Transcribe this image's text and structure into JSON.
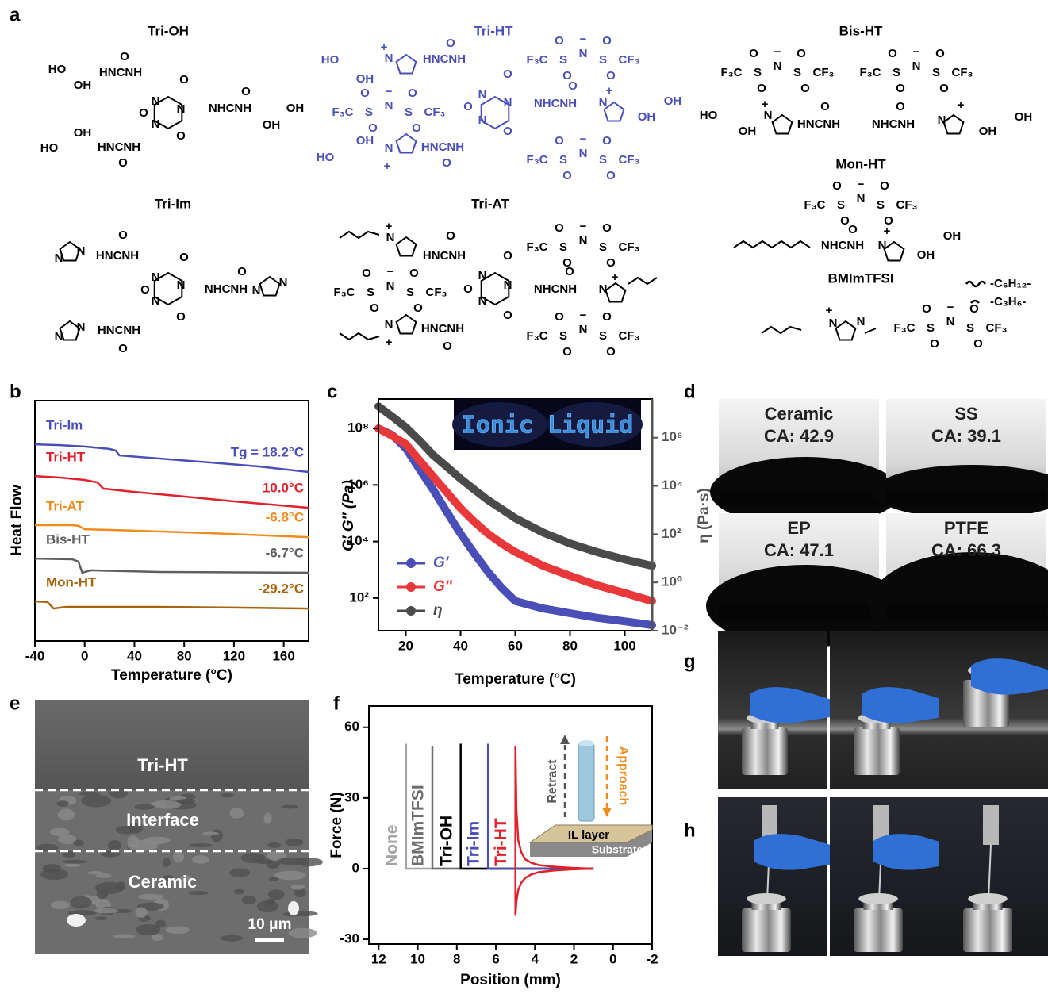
{
  "panel_labels": [
    "a",
    "b",
    "c",
    "d",
    "e",
    "f",
    "g",
    "h"
  ],
  "structures": {
    "molecules": [
      {
        "name": "Tri-OH",
        "fragments": [
          "HO",
          "OH",
          "O",
          "HNCNH",
          "N",
          "O",
          "N",
          "O",
          "N",
          "O",
          "NHCNH",
          "O",
          "OH",
          "OH",
          "HO",
          "OH",
          "HNCNH",
          "O"
        ]
      },
      {
        "name": "Tri-HT",
        "fragments": [
          "HO",
          "OH",
          "+",
          "N",
          "HNCNH",
          "O",
          "N",
          "O",
          "N",
          "O",
          "N",
          "O",
          "NHCNH",
          "O",
          "N",
          "+",
          "OH",
          "OH",
          "HO",
          "OH",
          "N",
          "+",
          "HNCNH",
          "O"
        ]
      },
      {
        "name": "Bis-HT",
        "fragments": [
          "HO",
          "OH",
          "+",
          "N",
          "HNCNH",
          "O",
          "NHCNH",
          "O",
          "N",
          "+",
          "OH",
          "OH"
        ]
      },
      {
        "name": "Mon-HT",
        "fragments": [
          "NHCNH",
          "O",
          "N",
          "+",
          "OH",
          "OH"
        ]
      },
      {
        "name": "Tri-Im",
        "fragments": [
          "N",
          "N",
          "HNCNH",
          "O",
          "N",
          "O",
          "N",
          "O",
          "N",
          "O",
          "NHCNH",
          "O",
          "N",
          "N",
          "N",
          "N",
          "HNCNH",
          "O"
        ]
      },
      {
        "name": "Tri-AT",
        "fragments": [
          "+",
          "N",
          "HNCNH",
          "O",
          "N",
          "O",
          "N",
          "O",
          "N",
          "O",
          "NHCNH",
          "O",
          "N",
          "+",
          "N",
          "+",
          "HNCNH",
          "O"
        ]
      },
      {
        "name": "BMImTFSI",
        "fragments": [
          "+",
          "N",
          "N"
        ]
      }
    ],
    "anion": [
      "O",
      "−",
      "O",
      "F₃C",
      "S",
      "N",
      "S",
      "CF₃",
      "O",
      "O"
    ],
    "linkers": [
      "-C₆H₁₂-",
      "-C₃H₆-"
    ]
  },
  "chart_data": [
    {
      "type": "line",
      "xlabel": "Temperature (°C)",
      "ylabel": "Heat Flow",
      "xlim": [
        -40,
        180
      ],
      "xticks": [
        -40,
        0,
        40,
        80,
        120,
        160
      ],
      "ylim": [
        0,
        100
      ],
      "series": [
        {
          "name": "Tri-Im",
          "color": "#4a4fb8",
          "annotation": "Tg = 18.2°C",
          "x": [
            -40,
            -20,
            0,
            20,
            25,
            28,
            60,
            100,
            140,
            180
          ],
          "values": [
            81.8,
            81.5,
            80.9,
            79.9,
            79.2,
            77.2,
            75.9,
            74.3,
            72.6,
            70.3
          ]
        },
        {
          "name": "Tri-HT",
          "color": "#e0202a",
          "annotation": "10.0°C",
          "x": [
            -40,
            -20,
            0,
            10,
            15,
            40,
            80,
            120,
            180
          ],
          "values": [
            68.6,
            68.0,
            67.0,
            66.0,
            63.4,
            62.0,
            60.1,
            58.1,
            55.4
          ]
        },
        {
          "name": "Tri-AT",
          "color": "#f08c1e",
          "annotation": "-6.8°C",
          "x": [
            -40,
            -10,
            -5,
            0,
            40,
            100,
            180
          ],
          "values": [
            48.2,
            48.2,
            47.9,
            46.5,
            45.9,
            44.9,
            43.2
          ]
        },
        {
          "name": "Bis-HT",
          "color": "#5f5f5f",
          "annotation": "-6.7°C",
          "x": [
            -40,
            -10,
            -5,
            -2,
            5,
            60,
            180
          ],
          "values": [
            34.3,
            34.0,
            33.0,
            28.4,
            29.4,
            28.7,
            28.4
          ]
        },
        {
          "name": "Mon-HT",
          "color": "#a8650f",
          "annotation": "-29.2°C",
          "x": [
            -40,
            -30,
            -28,
            -25,
            -15,
            60,
            120,
            180
          ],
          "values": [
            16.5,
            16.2,
            15.2,
            13.5,
            14.2,
            14.2,
            13.9,
            13.5
          ]
        }
      ]
    },
    {
      "type": "line",
      "xlabel": "Temperature (°C)",
      "ylabel": "G′ G″ (Pa)",
      "y2label": "η (Pa·s)",
      "inset": "Ionic Liquid",
      "log_y": true,
      "log_y2": true,
      "xlim": [
        10,
        110
      ],
      "xticks": [
        20,
        40,
        60,
        80,
        100
      ],
      "ylim": [
        7,
        1100000000
      ],
      "yticks": [
        {
          "value": 100,
          "label": "10²"
        },
        {
          "value": 10000,
          "label": "10⁴"
        },
        {
          "value": 1000000,
          "label": "10⁶"
        },
        {
          "value": 100000000,
          "label": "10⁸"
        }
      ],
      "y2lim": [
        0.01,
        40000000
      ],
      "y2ticks": [
        {
          "value": 0.01,
          "label": "10⁻²"
        },
        {
          "value": 1,
          "label": "10⁰"
        },
        {
          "value": 100,
          "label": "10²"
        },
        {
          "value": 10000,
          "label": "10⁴"
        },
        {
          "value": 1000000,
          "label": "10⁶"
        }
      ],
      "x": [
        10,
        15,
        20,
        25,
        30,
        35,
        40,
        45,
        50,
        55,
        60,
        70,
        80,
        90,
        100,
        110
      ],
      "series": [
        {
          "name": "G′",
          "color": "#4a4fb8",
          "values": [
            100000000,
            59000000,
            20000000,
            3600000,
            680000,
            110000,
            19000,
            3800,
            850,
            230,
            78,
            43,
            29,
            20,
            15,
            11
          ]
        },
        {
          "name": "G″",
          "color": "#e8383a",
          "values": [
            100000000,
            55000000,
            28000000,
            7500000,
            2000000,
            550000,
            150000,
            50000,
            19000,
            8500,
            4300,
            1400,
            610,
            280,
            150,
            78
          ]
        },
        {
          "name": "η",
          "color": "#4a4a4a",
          "axis": "y2",
          "values": [
            20000000,
            7500000,
            2700000,
            760000,
            190000,
            62000,
            20000,
            7000,
            2600,
            1100,
            460,
            120,
            41,
            18,
            9,
            4.9
          ]
        }
      ]
    },
    {
      "type": "line",
      "xlabel": "Position (mm)",
      "ylabel": "Force (N)",
      "inset_labels": [
        "Retract",
        "Approach",
        "IL layer",
        "Substrate"
      ],
      "xlim": [
        12.5,
        -2
      ],
      "xticks": [
        12,
        10,
        8,
        6,
        4,
        2,
        0,
        -2
      ],
      "ylim": [
        -32,
        69
      ],
      "yticks": [
        -30,
        0,
        30,
        60
      ],
      "series": [
        {
          "name": "None",
          "color": "#a3a3a3",
          "x": [
            10.6,
            10.6,
            1.0
          ],
          "values": [
            53,
            0,
            0
          ]
        },
        {
          "name": "BMImTFSI",
          "color": "#6e6e6e",
          "x": [
            9.25,
            9.25,
            1.0
          ],
          "values": [
            52,
            0,
            0
          ]
        },
        {
          "name": "Tri-OH",
          "color": "#000000",
          "x": [
            7.8,
            7.8,
            1.0
          ],
          "values": [
            53,
            0,
            0
          ]
        },
        {
          "name": "Tri-Im",
          "color": "#4a4fb8",
          "x": [
            6.4,
            6.4,
            1.0
          ],
          "values": [
            53,
            0,
            0
          ]
        },
        {
          "name": "Tri-HT",
          "color": "#e0202a",
          "x": [
            5.0,
            5.0,
            4.95,
            4.85,
            4.7,
            4.5,
            4.2,
            3.8,
            3.0,
            2.0,
            1.0,
            null,
            5.0,
            4.95,
            4.85,
            4.7,
            4.5,
            4.2,
            3.8,
            3.0,
            2.0,
            1.0
          ],
          "values": [
            -20,
            52,
            25,
            12,
            7,
            4,
            2.5,
            1.5,
            0.8,
            0.3,
            0,
            null,
            -20,
            -14,
            -9,
            -6,
            -4,
            -2.5,
            -1.5,
            -0.8,
            -0.3,
            0
          ]
        }
      ]
    }
  ],
  "contact_angle": [
    {
      "substrate": "Ceramic",
      "label": "CA: 42.9"
    },
    {
      "substrate": "SS",
      "label": "CA: 39.1"
    },
    {
      "substrate": "EP",
      "label": "CA: 47.1"
    },
    {
      "substrate": "PTFE",
      "label": "CA: 66.3"
    }
  ],
  "sem": {
    "labels": [
      "Tri-HT",
      "Interface",
      "Ceramic"
    ],
    "scale_bar": "10 μm"
  }
}
